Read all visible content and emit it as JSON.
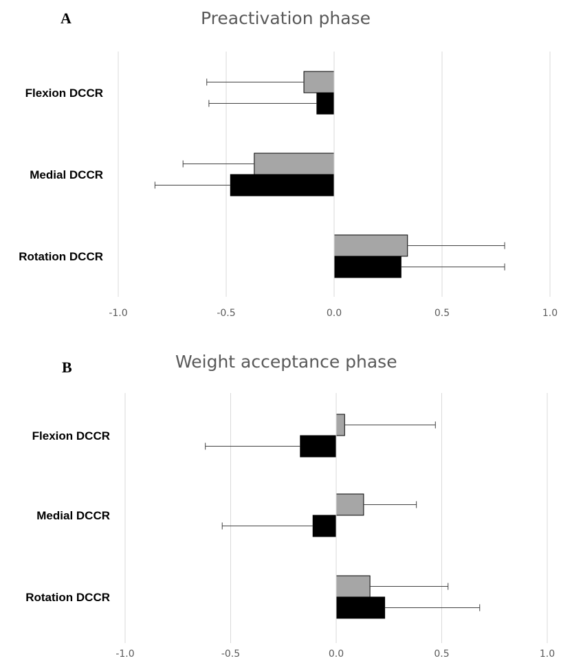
{
  "chart_data": [
    {
      "type": "bar",
      "orientation": "horizontal",
      "panel_label": "A",
      "title": "Preactivation phase",
      "categories": [
        "Flexion DCCR",
        "Medial DCCR",
        "Rotation DCCR"
      ],
      "series": [
        {
          "color": "#a6a6a6",
          "values": [
            -0.14,
            -0.37,
            0.34
          ],
          "error_minus": [
            0.45,
            0.33,
            0.0
          ],
          "error_plus": [
            0.0,
            0.0,
            0.45
          ]
        },
        {
          "color": "#000000",
          "values": [
            -0.08,
            -0.48,
            0.31
          ],
          "error_minus": [
            0.5,
            0.35,
            0.0
          ],
          "error_plus": [
            0.0,
            0.0,
            0.48
          ]
        }
      ],
      "xlim": [
        -1.0,
        1.0
      ],
      "xticks": [
        "-1.0",
        "-0.5",
        "0.0",
        "0.5",
        "1.0"
      ],
      "grid": true,
      "legend": false
    },
    {
      "type": "bar",
      "orientation": "horizontal",
      "panel_label": "B",
      "title": "Weight acceptance phase",
      "categories": [
        "Flexion DCCR",
        "Medial DCCR",
        "Rotation DCCR"
      ],
      "series": [
        {
          "color": "#a6a6a6",
          "values": [
            0.04,
            0.13,
            0.16
          ],
          "error_minus": [
            0.0,
            0.0,
            0.0
          ],
          "error_plus": [
            0.43,
            0.25,
            0.37
          ]
        },
        {
          "color": "#000000",
          "values": [
            -0.17,
            -0.11,
            0.23
          ],
          "error_minus": [
            0.45,
            0.43,
            0.0
          ],
          "error_plus": [
            0.0,
            0.0,
            0.45
          ]
        }
      ],
      "xlim": [
        -1.0,
        1.0
      ],
      "xticks": [
        "-1.0",
        "-0.5",
        "0.0",
        "0.5",
        "1.0"
      ],
      "grid": true,
      "legend": false
    }
  ]
}
